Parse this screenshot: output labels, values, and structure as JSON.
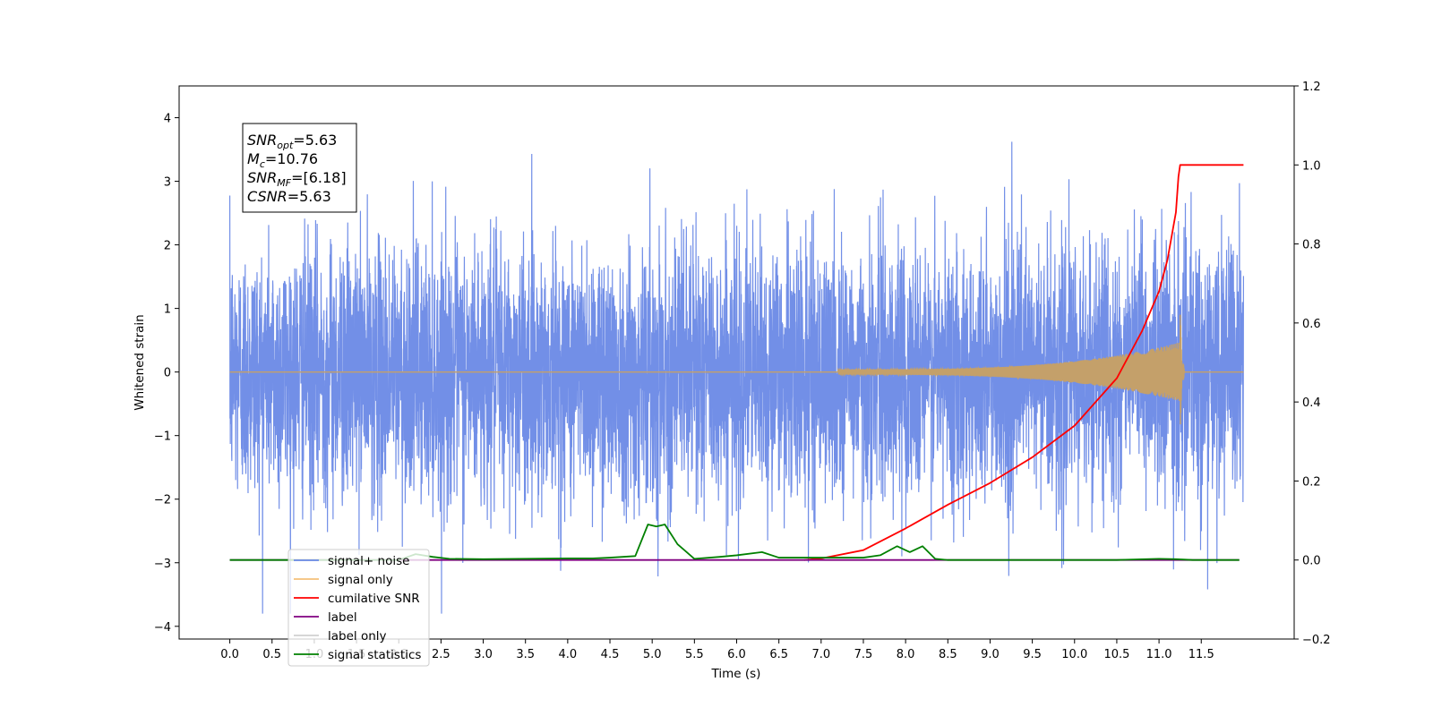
{
  "chart_data": {
    "type": "line",
    "xlabel": "Time (s)",
    "ylabel": "Whitened strain",
    "xlim": [
      -0.6,
      12.6
    ],
    "ylim": [
      -4.2,
      4.5
    ],
    "y2lim": [
      -0.2,
      1.2
    ],
    "grid": false,
    "x_ticks": [
      "0.0",
      "0.5",
      "1.0",
      "1.5",
      "2.0",
      "2.5",
      "3.0",
      "3.5",
      "4.0",
      "4.5",
      "5.0",
      "5.5",
      "6.0",
      "6.5",
      "7.0",
      "7.5",
      "8.0",
      "8.5",
      "9.0",
      "9.5",
      "10.0",
      "10.5",
      "11.0",
      "11.5"
    ],
    "y_ticks": [
      "4",
      "3",
      "2",
      "1",
      "0",
      "−1",
      "−2",
      "−3",
      "−4"
    ],
    "y_ticks_values": [
      4,
      3,
      2,
      1,
      0,
      -1,
      -2,
      -3,
      -4
    ],
    "y2_ticks": [
      "1.2",
      "1.0",
      "0.8",
      "0.6",
      "0.4",
      "0.2",
      "0.0",
      "−0.2"
    ],
    "y2_ticks_values": [
      1.2,
      1.0,
      0.8,
      0.6,
      0.4,
      0.2,
      0.0,
      -0.2
    ],
    "legend": {
      "location": "lower-left",
      "entries": [
        {
          "label": "signal+ noise",
          "color": "#6a89e6"
        },
        {
          "label": "signal only",
          "color": "#f5c07a"
        },
        {
          "label": "cumilative SNR",
          "color": "#ff0000"
        },
        {
          "label": "label",
          "color": "#800080"
        },
        {
          "label": "label only",
          "color": "#d0d0d0"
        },
        {
          "label": "signal statistics",
          "color": "#008000"
        }
      ]
    },
    "annotation": {
      "lines": [
        {
          "prefix": "SNR",
          "sub": "opt",
          "value": "=5.63"
        },
        {
          "prefix": "M",
          "sub": "c",
          "value": "=10.76"
        },
        {
          "prefix": "SNR",
          "sub": "MF",
          "value": "=[6.18]"
        },
        {
          "prefix": "CSNR",
          "sub": "",
          "value": "=5.63"
        }
      ]
    },
    "series": [
      {
        "name": "signal+ noise",
        "axis": "left",
        "color": "#6a89e6",
        "description_amplitude_std": 1.0,
        "x_range": [
          0.0,
          12.0
        ]
      },
      {
        "name": "signal only",
        "axis": "left",
        "color": "#c4a06a",
        "chirp_start": 7.2,
        "merger_time": 11.25,
        "peak_amplitude": 0.95
      },
      {
        "name": "cumilative SNR",
        "axis": "right",
        "color": "#ff0000",
        "x": [
          6.8,
          7.0,
          7.5,
          8.0,
          8.5,
          9.0,
          9.5,
          10.0,
          10.5,
          10.8,
          11.0,
          11.1,
          11.2,
          11.23,
          11.25,
          12.0
        ],
        "y": [
          0.0,
          0.004,
          0.025,
          0.08,
          0.14,
          0.195,
          0.26,
          0.34,
          0.46,
          0.58,
          0.68,
          0.76,
          0.88,
          0.97,
          1.0,
          1.0
        ]
      },
      {
        "name": "label",
        "axis": "right",
        "color": "#800080",
        "x": [
          0.0,
          11.95
        ],
        "y": [
          0.0,
          0.0
        ]
      },
      {
        "name": "signal statistics",
        "axis": "right",
        "color": "#008000",
        "x": [
          0.0,
          2.0,
          2.2,
          2.4,
          2.6,
          3.0,
          4.0,
          4.3,
          4.5,
          4.8,
          4.95,
          5.05,
          5.15,
          5.3,
          5.5,
          5.8,
          6.0,
          6.3,
          6.5,
          7.5,
          7.7,
          7.9,
          8.05,
          8.2,
          8.35,
          8.5,
          10.5,
          11.0,
          11.2,
          11.4,
          11.95
        ],
        "y": [
          0.0,
          0.0,
          0.015,
          0.008,
          0.003,
          0.002,
          0.004,
          0.004,
          0.006,
          0.01,
          0.09,
          0.085,
          0.09,
          0.04,
          0.003,
          0.008,
          0.012,
          0.02,
          0.006,
          0.006,
          0.012,
          0.035,
          0.02,
          0.035,
          0.003,
          0.0,
          0.0,
          0.003,
          0.002,
          0.0,
          0.0
        ]
      }
    ]
  }
}
